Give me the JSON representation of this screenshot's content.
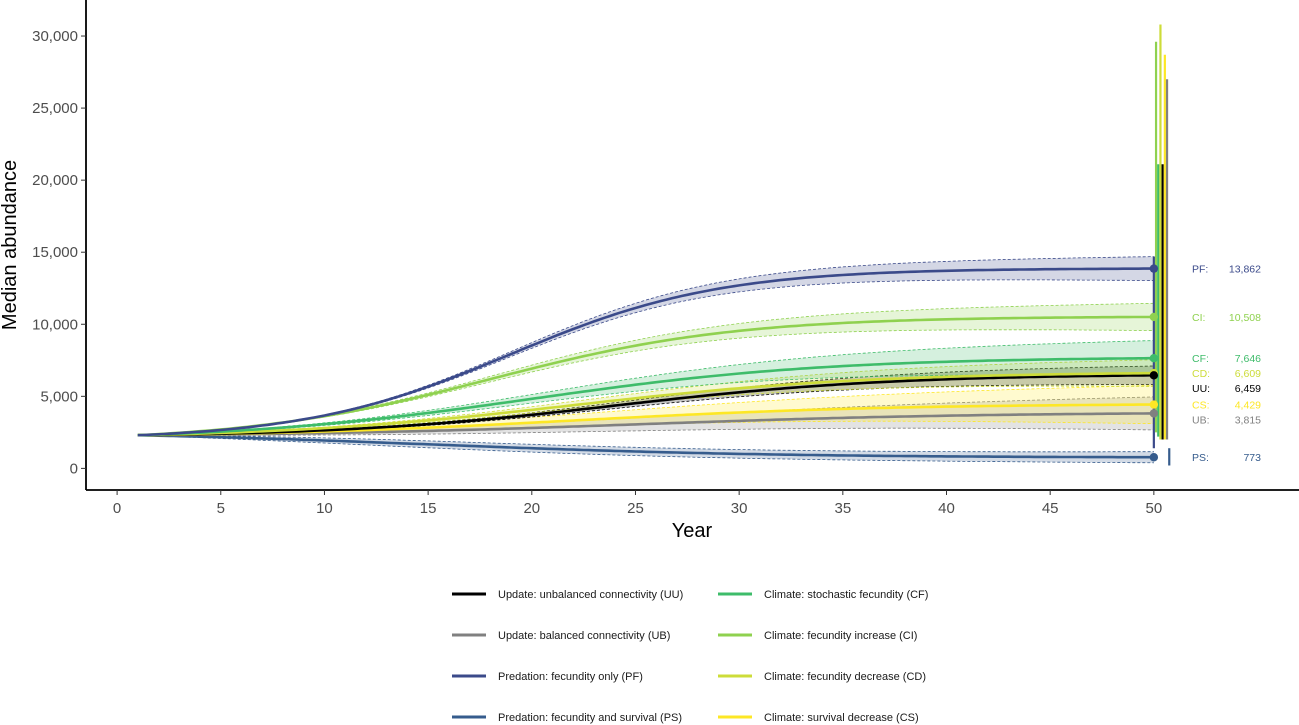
{
  "chart_data": {
    "type": "line",
    "title": "",
    "xlabel": "Year",
    "ylabel": "Median abundance",
    "xlim": [
      -1.5,
      57
    ],
    "ylim": [
      -1500,
      32500
    ],
    "xticks": [
      0,
      5,
      10,
      15,
      20,
      25,
      30,
      35,
      40,
      45,
      50
    ],
    "yticks": [
      0,
      5000,
      10000,
      15000,
      20000,
      25000,
      30000
    ],
    "ytick_labels": [
      "0",
      "5,000",
      "10,000",
      "15,000",
      "20,000",
      "25,000",
      "30,000"
    ],
    "grid": false,
    "legend_position": "bottom",
    "start_value": 2300,
    "series": [
      {
        "code": "PF",
        "name": "Predation: fecundity only (PF)",
        "color": "#3b4a8a",
        "final": 13862,
        "final_label": "13,862",
        "mid": 19,
        "k": 0.2,
        "band": 0.06,
        "bar_lo": 1400,
        "bar_hi": 14700
      },
      {
        "code": "CI",
        "name": "Climate: fecundity increase (CI)",
        "color": "#8fd14f",
        "final": 10508,
        "final_label": "10,508",
        "mid": 18,
        "k": 0.17,
        "band": 0.09,
        "bar_lo": 2500,
        "bar_hi": 29600
      },
      {
        "code": "CF",
        "name": "Climate: stochastic fecundity (CF)",
        "color": "#3ebc6a",
        "final": 7646,
        "final_label": "7,646",
        "mid": 20,
        "k": 0.14,
        "band": 0.16,
        "bar_lo": 2200,
        "bar_hi": 21100
      },
      {
        "code": "CD",
        "name": "Climate: fecundity decrease (CD)",
        "color": "#cddc39",
        "final": 6609,
        "final_label": "6,609",
        "mid": 22,
        "k": 0.14,
        "band": 0.14,
        "bar_lo": 2000,
        "bar_hi": 30800
      },
      {
        "code": "UU",
        "name": "Update: unbalanced connectivity (UU)",
        "color": "#000000",
        "final": 6459,
        "final_label": "6,459",
        "mid": 24,
        "k": 0.15,
        "band": 0.1,
        "bar_lo": 2000,
        "bar_hi": 21100
      },
      {
        "code": "CS",
        "name": "Climate: survival decrease (CS)",
        "color": "#fde725",
        "final": 4429,
        "final_label": "4,429",
        "mid": 22,
        "k": 0.13,
        "band": 0.3,
        "bar_lo": 2000,
        "bar_hi": 28700
      },
      {
        "code": "UB",
        "name": "Update: balanced connectivity (UB)",
        "color": "#808080",
        "final": 3815,
        "final_label": "3,815",
        "mid": 25,
        "k": 0.12,
        "band": 0.3,
        "bar_lo": 2000,
        "bar_hi": 27000
      },
      {
        "code": "PS",
        "name": "Predation: fecundity and survival (PS)",
        "color": "#365c8d",
        "final": 773,
        "final_label": "773",
        "mid": 15,
        "k": 0.12,
        "band": 0.5,
        "bar_lo": 200,
        "bar_hi": 1400
      }
    ],
    "legend_columns": [
      [
        "UU",
        "UB",
        "PF",
        "PS"
      ],
      [
        "CF",
        "CI",
        "CD",
        "CS"
      ]
    ]
  }
}
